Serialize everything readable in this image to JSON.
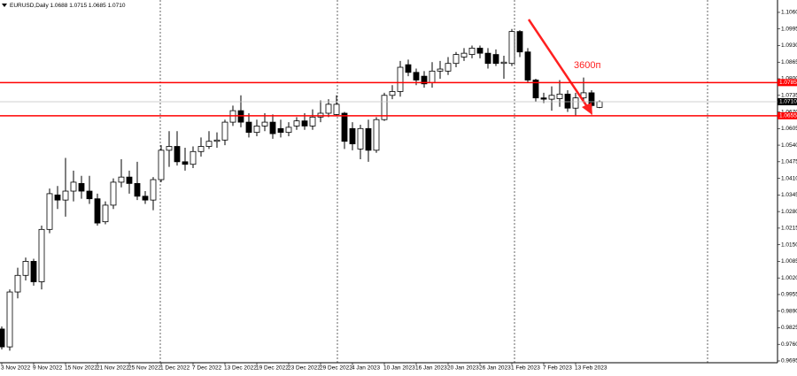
{
  "chart_data": {
    "type": "candlestick",
    "title": "EURUSD,Daily  1.0688 1.0715 1.0685 1.0710",
    "annotation": "3600п",
    "categories": [
      "3 Nov 2022",
      null,
      null,
      null,
      "9 Nov 2022",
      null,
      null,
      null,
      "15 Nov 2022",
      null,
      null,
      null,
      "21 Nov 2022",
      null,
      null,
      null,
      "25 Nov 2022",
      null,
      null,
      null,
      "1 Dec 2022",
      null,
      null,
      null,
      "7 Dec 2022",
      null,
      null,
      null,
      "13 Dec 2022",
      null,
      null,
      null,
      "19 Dec 2022",
      null,
      null,
      null,
      "23 Dec 2022",
      null,
      null,
      null,
      "29 Dec 2022",
      null,
      null,
      null,
      "4 Jan 2023",
      null,
      null,
      null,
      "10 Jan 2023",
      null,
      null,
      null,
      "16 Jan 2023",
      null,
      null,
      null,
      "20 Jan 2023",
      null,
      null,
      null,
      "26 Jan 2023",
      null,
      null,
      null,
      "1 Feb 2023",
      null,
      null,
      null,
      "7 Feb 2023",
      null,
      null,
      null,
      "13 Feb 2023",
      null,
      null,
      null
    ],
    "open": [
      0.982,
      0.975,
      0.9965,
      1.003,
      1.0085,
      1.0005,
      1.021,
      1.0345,
      1.0325,
      1.036,
      1.039,
      1.036,
      1.033,
      1.024,
      1.0305,
      1.0395,
      1.0415,
      1.039,
      1.034,
      1.0325,
      1.0405,
      1.052,
      1.0535,
      1.0475,
      1.0465,
      1.0515,
      1.0535,
      1.0555,
      1.056,
      1.063,
      1.0675,
      1.063,
      1.059,
      1.0615,
      1.063,
      1.0605,
      1.059,
      1.0615,
      1.0635,
      1.0615,
      1.065,
      1.0665,
      1.066,
      1.0665,
      1.0605,
      1.0525,
      1.0605,
      1.052,
      1.064,
      1.0735,
      1.075,
      1.0855,
      1.0825,
      1.081,
      1.0785,
      1.083,
      1.083,
      1.086,
      1.0885,
      1.0895,
      1.092,
      1.09,
      1.0895,
      1.086,
      1.086,
      1.0985,
      1.0905,
      1.0795,
      1.0725,
      1.072,
      1.0722,
      1.074,
      1.0685,
      1.0725,
      1.0745,
      1.0688
    ],
    "high": [
      0.983,
      0.9975,
      1.006,
      1.01,
      1.0095,
      1.0225,
      1.037,
      1.038,
      1.049,
      1.044,
      1.042,
      1.042,
      1.035,
      1.032,
      1.041,
      1.0485,
      1.044,
      1.0475,
      1.036,
      1.0415,
      1.054,
      1.0595,
      1.0595,
      1.053,
      1.0535,
      1.057,
      1.0595,
      1.059,
      1.064,
      1.0695,
      1.0735,
      1.0665,
      1.064,
      1.0665,
      1.066,
      1.064,
      1.063,
      1.065,
      1.0665,
      1.068,
      1.0715,
      1.072,
      1.0735,
      1.067,
      1.063,
      1.062,
      1.064,
      1.065,
      1.0745,
      1.0775,
      1.087,
      1.0875,
      1.084,
      1.083,
      1.0865,
      1.087,
      1.0885,
      1.0905,
      1.092,
      1.093,
      1.093,
      1.092,
      1.0915,
      1.089,
      1.0995,
      1.099,
      1.092,
      1.08,
      1.0745,
      1.077,
      1.0795,
      1.0755,
      1.0745,
      1.0805,
      1.0755,
      1.0715
    ],
    "low": [
      0.974,
      0.9735,
      0.994,
      1.001,
      0.999,
      0.9975,
      1.0195,
      1.029,
      1.026,
      1.032,
      1.033,
      1.031,
      1.0225,
      1.023,
      1.029,
      1.0375,
      1.035,
      1.0325,
      1.031,
      1.0285,
      1.0395,
      1.0455,
      1.046,
      1.044,
      1.045,
      1.0495,
      1.0525,
      1.053,
      1.054,
      1.0615,
      1.061,
      1.057,
      1.0575,
      1.0595,
      1.0565,
      1.057,
      1.0575,
      1.06,
      1.06,
      1.06,
      1.063,
      1.065,
      1.0655,
      1.0525,
      1.052,
      1.0485,
      1.0475,
      1.051,
      1.0635,
      1.072,
      1.073,
      1.081,
      1.0775,
      1.0765,
      1.0765,
      1.08,
      1.0815,
      1.0845,
      1.087,
      1.088,
      1.088,
      1.084,
      1.085,
      1.08,
      1.085,
      1.0885,
      1.0785,
      1.071,
      1.0705,
      1.0675,
      1.069,
      1.067,
      1.0655,
      1.0705,
      1.066,
      1.0685
    ],
    "close": [
      0.975,
      0.9965,
      1.003,
      1.0085,
      1.0005,
      1.021,
      1.035,
      1.0325,
      1.036,
      1.0395,
      1.036,
      1.033,
      1.0235,
      1.0305,
      1.0395,
      1.0415,
      1.039,
      1.034,
      1.0325,
      1.0405,
      1.052,
      1.0535,
      1.0475,
      1.0465,
      1.0515,
      1.0535,
      1.0555,
      1.056,
      1.063,
      1.0675,
      1.063,
      1.059,
      1.0615,
      1.063,
      1.0585,
      1.059,
      1.061,
      1.0635,
      1.0615,
      1.065,
      1.0665,
      1.07,
      1.07,
      1.0555,
      1.0545,
      1.0605,
      1.052,
      1.064,
      1.0735,
      1.075,
      1.0845,
      1.0825,
      1.0795,
      1.078,
      1.083,
      1.0838,
      1.086,
      1.0895,
      1.09,
      1.092,
      1.09,
      1.086,
      1.086,
      1.0865,
      1.0985,
      1.0905,
      1.0795,
      1.0725,
      1.072,
      1.0735,
      1.074,
      1.0685,
      1.0725,
      1.0745,
      1.0695,
      1.071
    ],
    "ylim": [
      0.9688,
      1.1098
    ],
    "yticks": [
      {
        "value": 0.9695,
        "label": "0.9695"
      },
      {
        "value": 0.976,
        "label": "0.9760"
      },
      {
        "value": 0.9825,
        "label": "0.9825"
      },
      {
        "value": 0.989,
        "label": "0.9890"
      },
      {
        "value": 0.9955,
        "label": "0.9955"
      },
      {
        "value": 1.002,
        "label": "1.0020"
      },
      {
        "value": 1.0085,
        "label": "1.0085"
      },
      {
        "value": 1.015,
        "label": "1.0150"
      },
      {
        "value": 1.0215,
        "label": "1.0215"
      },
      {
        "value": 1.028,
        "label": "1.0280"
      },
      {
        "value": 1.0345,
        "label": "1.0345"
      },
      {
        "value": 1.041,
        "label": "1.0410"
      },
      {
        "value": 1.0475,
        "label": "1.0475"
      },
      {
        "value": 1.054,
        "label": "1.0540"
      },
      {
        "value": 1.0605,
        "label": "1.0605"
      },
      {
        "value": 1.067,
        "label": "1.0670"
      },
      {
        "value": 1.0735,
        "label": "1.0735"
      },
      {
        "value": 1.08,
        "label": "1.0800"
      },
      {
        "value": 1.0865,
        "label": "1.0865"
      },
      {
        "value": 1.093,
        "label": "1.0930"
      },
      {
        "value": 1.0995,
        "label": "1.0995"
      },
      {
        "value": 1.106,
        "label": "1.1060"
      }
    ],
    "levels": [
      {
        "value": 1.0785,
        "label": "1.0785",
        "color": "#ff0000"
      },
      {
        "value": 1.0655,
        "label": "1.0655",
        "color": "#ff0000"
      }
    ],
    "price_line": {
      "value": 1.071,
      "label": "1.0710",
      "color": "#c0c0c0"
    },
    "up_color": "#ffffff",
    "down_color": "#000000"
  }
}
